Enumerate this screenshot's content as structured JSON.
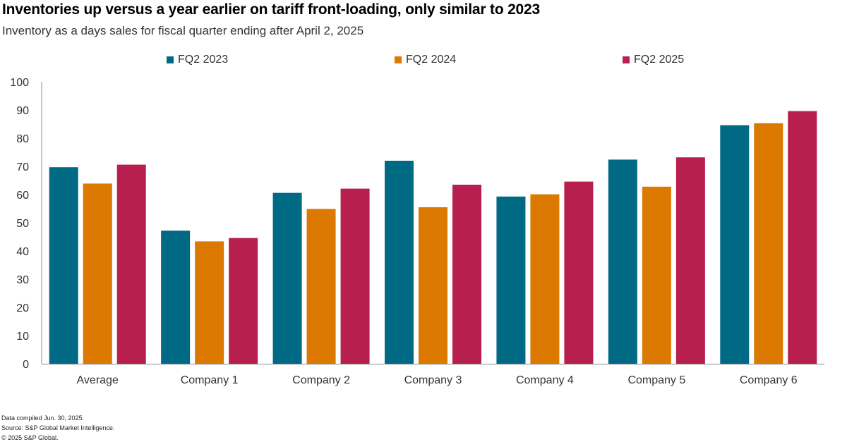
{
  "chart_data": {
    "type": "bar",
    "title": "Inventories up versus a year earlier on tariff front-loading, only similar to 2023",
    "subtitle": "Inventory as a days sales for fiscal quarter ending after April 2, 2025",
    "categories": [
      "Average",
      "Company 1",
      "Company 2",
      "Company 3",
      "Company 4",
      "Company 5",
      "Company 6"
    ],
    "series": [
      {
        "name": "FQ2 2023",
        "color": "#006A85",
        "values": [
          69.7,
          47.2,
          60.6,
          72.0,
          59.3,
          72.4,
          84.6
        ]
      },
      {
        "name": "FQ2 2024",
        "color": "#DB7900",
        "values": [
          63.9,
          43.4,
          54.9,
          55.5,
          60.1,
          62.8,
          85.3
        ]
      },
      {
        "name": "FQ2 2025",
        "color": "#B71F4E",
        "values": [
          70.6,
          44.6,
          62.1,
          63.5,
          64.6,
          73.2,
          89.6
        ]
      }
    ],
    "xlabel": "",
    "ylabel": "",
    "ylim": [
      0,
      100
    ],
    "yticks": [
      0,
      10,
      20,
      30,
      40,
      50,
      60,
      70,
      80,
      90,
      100
    ],
    "legend_position": "top",
    "grid": false
  },
  "footer": {
    "line1": "Data compiled Jun. 30, 2025.",
    "line2": "Source: S&P Global Market Intelligence.",
    "line3": "© 2025 S&P Global."
  }
}
